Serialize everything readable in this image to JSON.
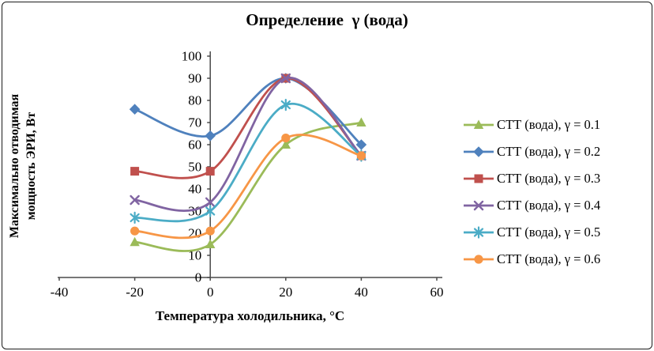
{
  "chart_data": {
    "type": "line",
    "title": "Определение  γ (вода)",
    "xlabel": "Температура холодильника, °С",
    "ylabel": "Максимально отводимая мощность ЭРИ, Вт",
    "ylabel_lines": [
      "Максимально отводимая",
      "мощность ЭРИ, Вт"
    ],
    "x": [
      -20,
      0,
      20,
      40
    ],
    "xlim": [
      -40,
      60
    ],
    "ylim": [
      0,
      100
    ],
    "x_ticks": [
      -40,
      -20,
      0,
      20,
      40,
      60
    ],
    "y_ticks": [
      0,
      10,
      20,
      30,
      40,
      50,
      60,
      70,
      80,
      90,
      100
    ],
    "grid": false,
    "smooth": true,
    "legend_position": "right",
    "axis_color": "#4a4a4a",
    "series": [
      {
        "name": "СТТ (вода), γ = 0.1",
        "marker": "triangle",
        "color": "#9BBB59",
        "values": [
          16,
          15,
          60,
          70
        ]
      },
      {
        "name": "СТТ (вода), γ = 0.2",
        "marker": "diamond",
        "color": "#4F81BD",
        "values": [
          76,
          64,
          90,
          60
        ]
      },
      {
        "name": "СТТ (вода), γ = 0.3",
        "marker": "square",
        "color": "#C0504D",
        "values": [
          48,
          48,
          90,
          55
        ]
      },
      {
        "name": "СТТ (вода), γ = 0.4",
        "marker": "x",
        "color": "#8064A2",
        "values": [
          35,
          34,
          90,
          55
        ]
      },
      {
        "name": "СТТ (вода), γ = 0.5",
        "marker": "asterisk",
        "color": "#4BACC6",
        "values": [
          27,
          30,
          78,
          55
        ]
      },
      {
        "name": "СТТ (вода), γ = 0.6",
        "marker": "circle",
        "color": "#F79646",
        "values": [
          21,
          21,
          63,
          55
        ]
      }
    ]
  }
}
